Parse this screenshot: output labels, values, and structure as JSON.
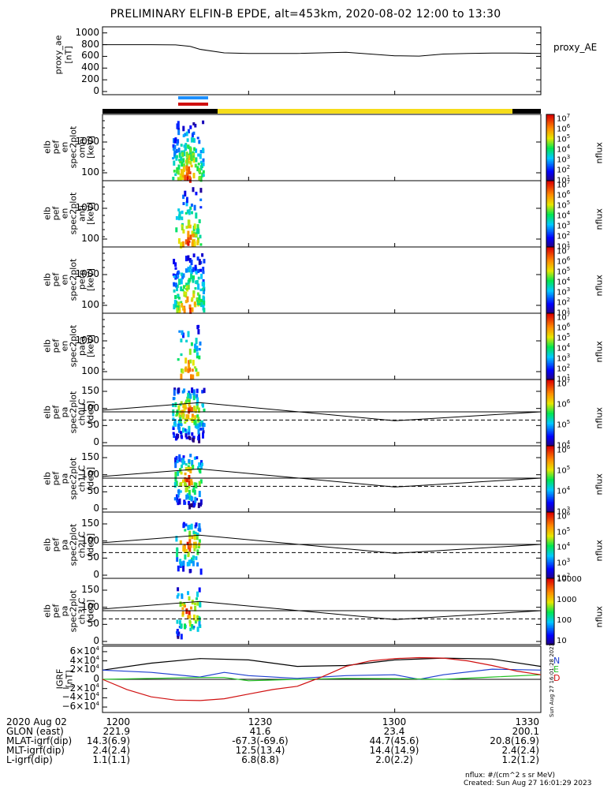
{
  "title": "PRELIMINARY ELFIN-B EPDE, alt=453km, 2020-08-02 12:00 to 13:30",
  "colors": {
    "black": "#000000",
    "blue": "#1f3fd0",
    "red": "#d01010",
    "green": "#22c022",
    "yellow": "#f5dc1a",
    "bar_blue": "#1e90ff"
  },
  "chart_data": [
    {
      "type": "line",
      "name": "proxy_ae",
      "ylabel": [
        "proxy_ae",
        "[nT]"
      ],
      "side_label": "proxy_AE",
      "yticks": [
        "1000",
        "800",
        "600",
        "400",
        "200",
        "0"
      ],
      "ylim": [
        0,
        1050
      ],
      "x_minutes": [
        0,
        5,
        10,
        15,
        18,
        20,
        25,
        30,
        40,
        50,
        55,
        60,
        65,
        70,
        75,
        80,
        85,
        90
      ],
      "values": [
        800,
        800,
        800,
        795,
        770,
        720,
        660,
        650,
        650,
        670,
        640,
        610,
        605,
        640,
        650,
        655,
        655,
        650
      ]
    },
    {
      "type": "heatmap",
      "name": "elb_pef_en_spec2plot_omni",
      "ylabel": [
        "elb",
        "pef",
        "en",
        "spec2plot",
        "omni",
        "[keV]"
      ],
      "yticks": [
        "1000",
        "100"
      ],
      "yscale": "log",
      "colorbar_ticks": [
        "10^7",
        "10^6",
        "10^5",
        "10^4",
        "10^3",
        "10^2",
        "10^1"
      ],
      "colorbar_label": "nflux"
    },
    {
      "type": "heatmap",
      "name": "elb_pef_en_spec2plot_anti",
      "ylabel": [
        "elb",
        "pef",
        "en",
        "spec2plot",
        "anti",
        "[keV]"
      ],
      "yticks": [
        "1000",
        "100"
      ],
      "yscale": "log",
      "colorbar_ticks": [
        "10^7",
        "10^6",
        "10^5",
        "10^4",
        "10^3",
        "10^2",
        "10^1"
      ],
      "colorbar_label": "nflux"
    },
    {
      "type": "heatmap",
      "name": "elb_pef_en_spec2plot_perp",
      "ylabel": [
        "elb",
        "pef",
        "en",
        "spec2plot",
        "perp",
        "[keV]"
      ],
      "yticks": [
        "1000",
        "100"
      ],
      "yscale": "log",
      "colorbar_ticks": [
        "10^7",
        "10^6",
        "10^5",
        "10^4",
        "10^3",
        "10^2",
        "10^1"
      ],
      "colorbar_label": "nflux"
    },
    {
      "type": "heatmap",
      "name": "elb_pef_en_spec2plot_para",
      "ylabel": [
        "elb",
        "pef",
        "en",
        "spec2plot",
        "para",
        "[keV]"
      ],
      "yticks": [
        "1000",
        "100"
      ],
      "yscale": "log",
      "colorbar_ticks": [
        "10^7",
        "10^6",
        "10^5",
        "10^4",
        "10^3",
        "10^2",
        "10^1"
      ],
      "colorbar_label": "nflux"
    },
    {
      "type": "heatmap",
      "name": "elb_pef_pa_spec2plot_ch0LC",
      "ylabel": [
        "elb",
        "pef",
        "pa",
        "spec2plot",
        "ch0LC",
        "[deg]"
      ],
      "yticks": [
        "150",
        "100",
        "50",
        "0"
      ],
      "ylim": [
        0,
        180
      ],
      "colorbar_ticks": [
        "10^7",
        "10^6",
        "10^5",
        "10^4"
      ],
      "colorbar_label": "nflux"
    },
    {
      "type": "heatmap",
      "name": "elb_pef_pa_spec2plot_ch1LC",
      "ylabel": [
        "elb",
        "pef",
        "pa",
        "spec2plot",
        "ch1LC",
        "[deg]"
      ],
      "yticks": [
        "150",
        "100",
        "50",
        "0"
      ],
      "ylim": [
        0,
        180
      ],
      "colorbar_ticks": [
        "10^6",
        "10^5",
        "10^4",
        "10^3"
      ],
      "colorbar_label": "nflux"
    },
    {
      "type": "heatmap",
      "name": "elb_pef_pa_spec2plot_ch2LC",
      "ylabel": [
        "elb",
        "pef",
        "pa",
        "spec2plot",
        "ch2LC",
        "[deg]"
      ],
      "yticks": [
        "150",
        "100",
        "50",
        "0"
      ],
      "ylim": [
        0,
        180
      ],
      "colorbar_ticks": [
        "10^6",
        "10^5",
        "10^4",
        "10^3",
        "10^2"
      ],
      "colorbar_label": "nflux"
    },
    {
      "type": "heatmap",
      "name": "elb_pef_pa_spec2plot_ch3LC",
      "ylabel": [
        "elb",
        "pef",
        "pa",
        "spec2plot",
        "ch3LC",
        "[deg]"
      ],
      "yticks": [
        "150",
        "100",
        "50",
        "0"
      ],
      "ylim": [
        0,
        180
      ],
      "colorbar_ticks": [
        "10000",
        "1000",
        "100",
        "10"
      ],
      "colorbar_label": "nflux"
    },
    {
      "type": "line",
      "name": "IGRF",
      "ylabel": [
        "IGRF",
        "[nT]"
      ],
      "yticks": [
        "6×10^4",
        "4×10^4",
        "2×10^4",
        "0",
        "−2×10^4",
        "−4×10^4",
        "−6×10^4"
      ],
      "ylim": [
        -65000,
        65000
      ],
      "legend": [
        "N",
        "E",
        "D"
      ],
      "side_text": "Sun Aug 27 16:01:28 2023",
      "series": [
        {
          "color": "black",
          "x_minutes": [
            0,
            10,
            20,
            30,
            40,
            50,
            60,
            70,
            80,
            90
          ],
          "values": [
            20000,
            35000,
            45000,
            42000,
            28000,
            30000,
            42000,
            46000,
            44000,
            28000
          ]
        },
        {
          "color": "blue",
          "x_minutes": [
            0,
            10,
            20,
            25,
            30,
            40,
            50,
            60,
            65,
            70,
            80,
            90
          ],
          "values": [
            20000,
            15000,
            5000,
            15000,
            8000,
            2000,
            8000,
            10000,
            0,
            10000,
            22000,
            20000
          ]
        },
        {
          "color": "green",
          "x_minutes": [
            0,
            10,
            20,
            25,
            30,
            40,
            50,
            60,
            70,
            80,
            90
          ],
          "values": [
            0,
            2000,
            4000,
            4000,
            -3000,
            0,
            2000,
            1500,
            0,
            5000,
            10000
          ]
        },
        {
          "color": "red",
          "x_minutes": [
            0,
            5,
            10,
            15,
            20,
            25,
            30,
            35,
            40,
            45,
            50,
            55,
            60,
            65,
            70,
            75,
            80,
            85,
            90
          ],
          "values": [
            0,
            -22000,
            -38000,
            -45000,
            -46000,
            -42000,
            -32000,
            -22000,
            -15000,
            5000,
            28000,
            40000,
            45000,
            47000,
            46000,
            40000,
            30000,
            18000,
            10000
          ]
        }
      ]
    }
  ],
  "xaxis_labels": {
    "row_names": [
      "2020 Aug 02",
      "GLON (east)",
      "MLAT-igrf(dip)",
      "MLT-igrf(dip)",
      "L-igrf(dip)"
    ],
    "columns": [
      [
        "1200",
        "221.9",
        "14.3(6.9)",
        "2.4(2.4)",
        "1.1(1.1)"
      ],
      [
        "1230",
        "41.6",
        "-67.3(-69.6)",
        "12.5(13.4)",
        "6.8(8.8)"
      ],
      [
        "1300",
        "23.4",
        "44.7(45.6)",
        "14.4(14.9)",
        "2.0(2.2)"
      ],
      [
        "1330",
        "200.1",
        "20.8(16.9)",
        "2.4(2.4)",
        "1.2(1.2)"
      ]
    ]
  },
  "footer": {
    "units": "nflux: #/(cm^2 s sr MeV)",
    "created": "Created: Sun Aug 27 16:01:29 2023"
  }
}
